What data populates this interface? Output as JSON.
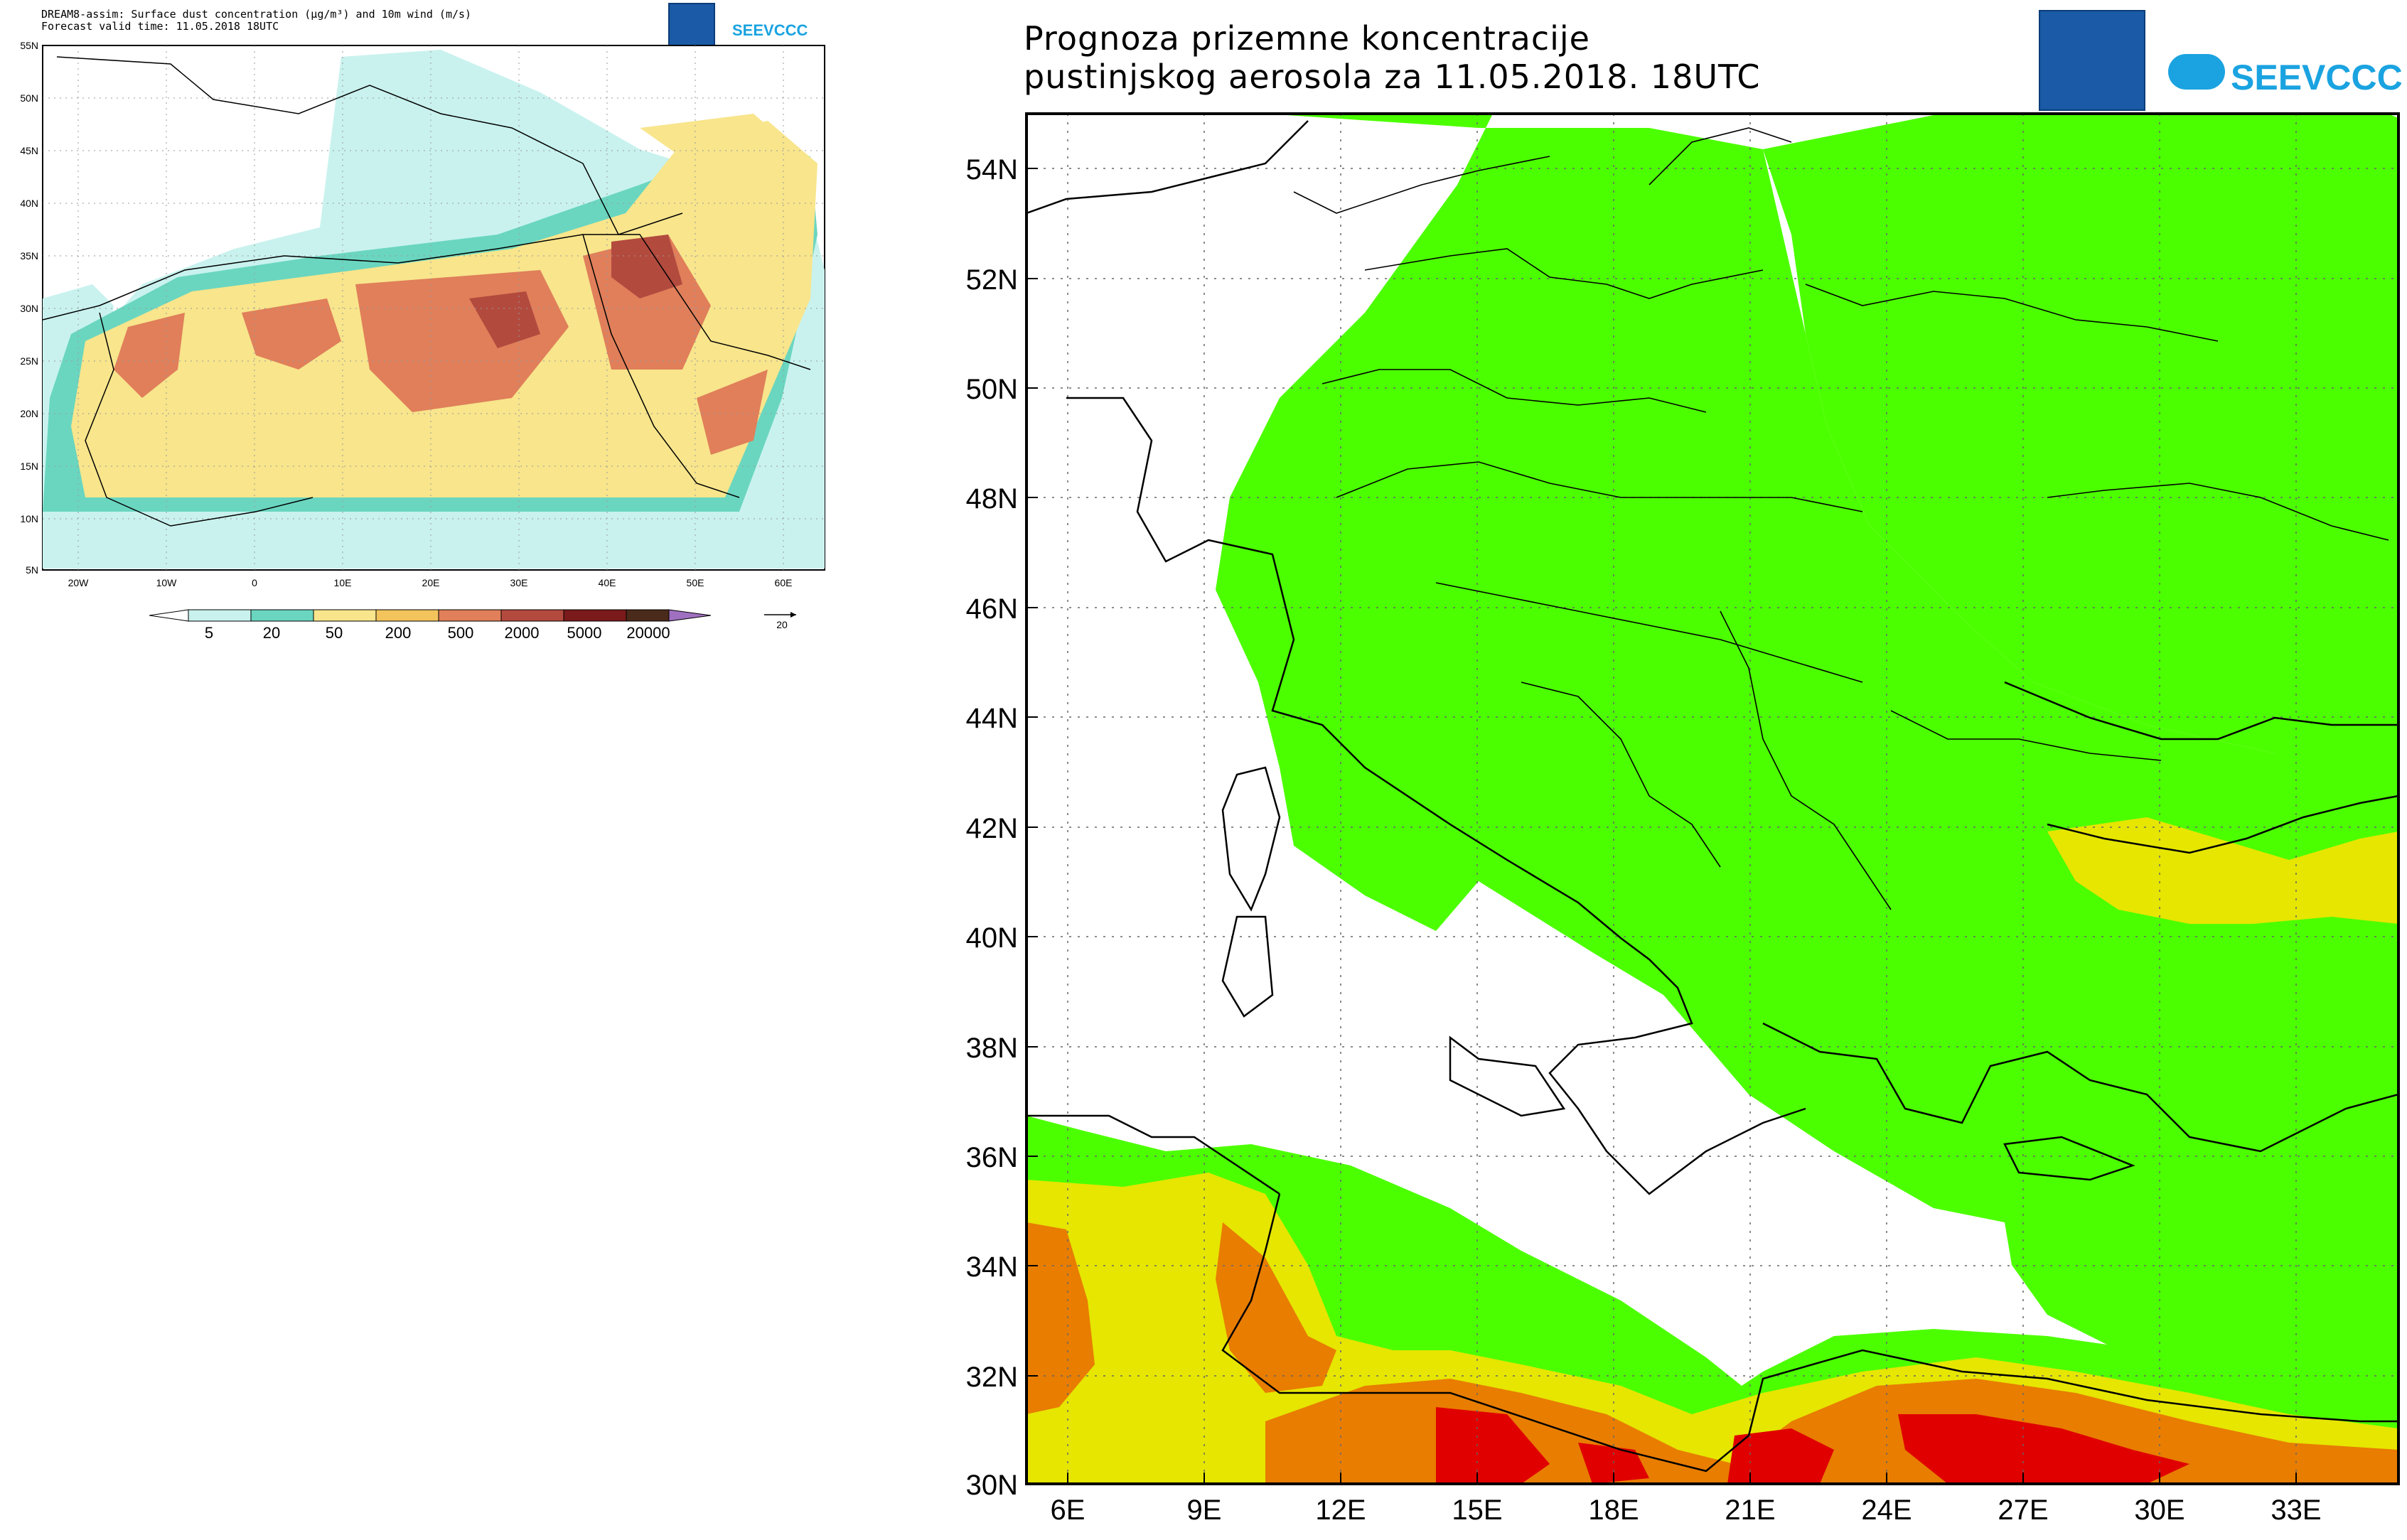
{
  "left": {
    "header_line1": "DREAM8-assim: Surface dust concentration (µg/m³) and 10m wind (m/s)",
    "header_line2": "Forecast valid time: 11.05.2018  18UTC",
    "logo_text": "SEEVCCC",
    "lat_labels": [
      "55N",
      "50N",
      "45N",
      "40N",
      "35N",
      "30N",
      "25N",
      "20N",
      "15N",
      "10N",
      "5N"
    ],
    "lon_labels": [
      "20W",
      "10W",
      "0",
      "10E",
      "20E",
      "30E",
      "40E",
      "50E",
      "60E"
    ],
    "legend_values": [
      "5",
      "20",
      "50",
      "200",
      "500",
      "2000",
      "5000",
      "20000"
    ],
    "legend_colors": [
      "#ffffff",
      "#c9f2ee",
      "#6ad6c0",
      "#f8e58c",
      "#f3c45c",
      "#e07f5a",
      "#b34a3e",
      "#7a1a1a",
      "#4a2a1a",
      "#a070c0"
    ],
    "wind_ref": "20"
  },
  "right": {
    "title_line1": "Prognoza prizemne koncentracije",
    "title_line2": "pustinjskog aerosola za 11.05.2018. 18UTC",
    "logo_text": "SEEVCCC",
    "lat_labels": [
      "54N",
      "52N",
      "50N",
      "48N",
      "46N",
      "44N",
      "42N",
      "40N",
      "38N",
      "36N",
      "34N",
      "32N",
      "30N"
    ],
    "lon_labels": [
      "6E",
      "9E",
      "12E",
      "15E",
      "18E",
      "21E",
      "24E",
      "27E",
      "30E",
      "33E"
    ],
    "colors": {
      "green": "#4cff00",
      "yellow": "#e6e600",
      "orange": "#e87d00",
      "red": "#e00000",
      "coast": "#000000",
      "grid": "#555555"
    }
  }
}
